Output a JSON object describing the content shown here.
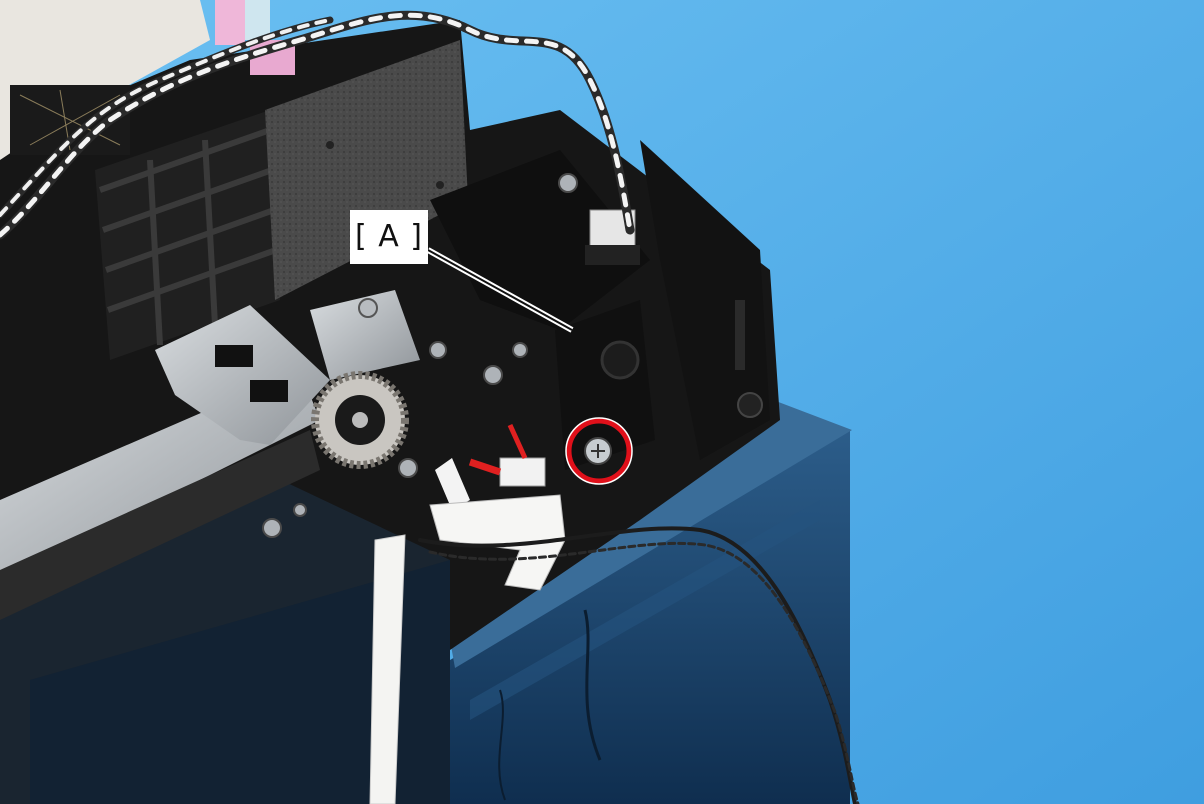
{
  "photo": {
    "subject": "printer-internal-mechanism",
    "callout_label": "[ A ]",
    "colors": {
      "background": "#56aee8",
      "highlight_circle": "#e0101a",
      "frame_black": "#141414",
      "housing_blue": "#1d4f7e"
    }
  }
}
